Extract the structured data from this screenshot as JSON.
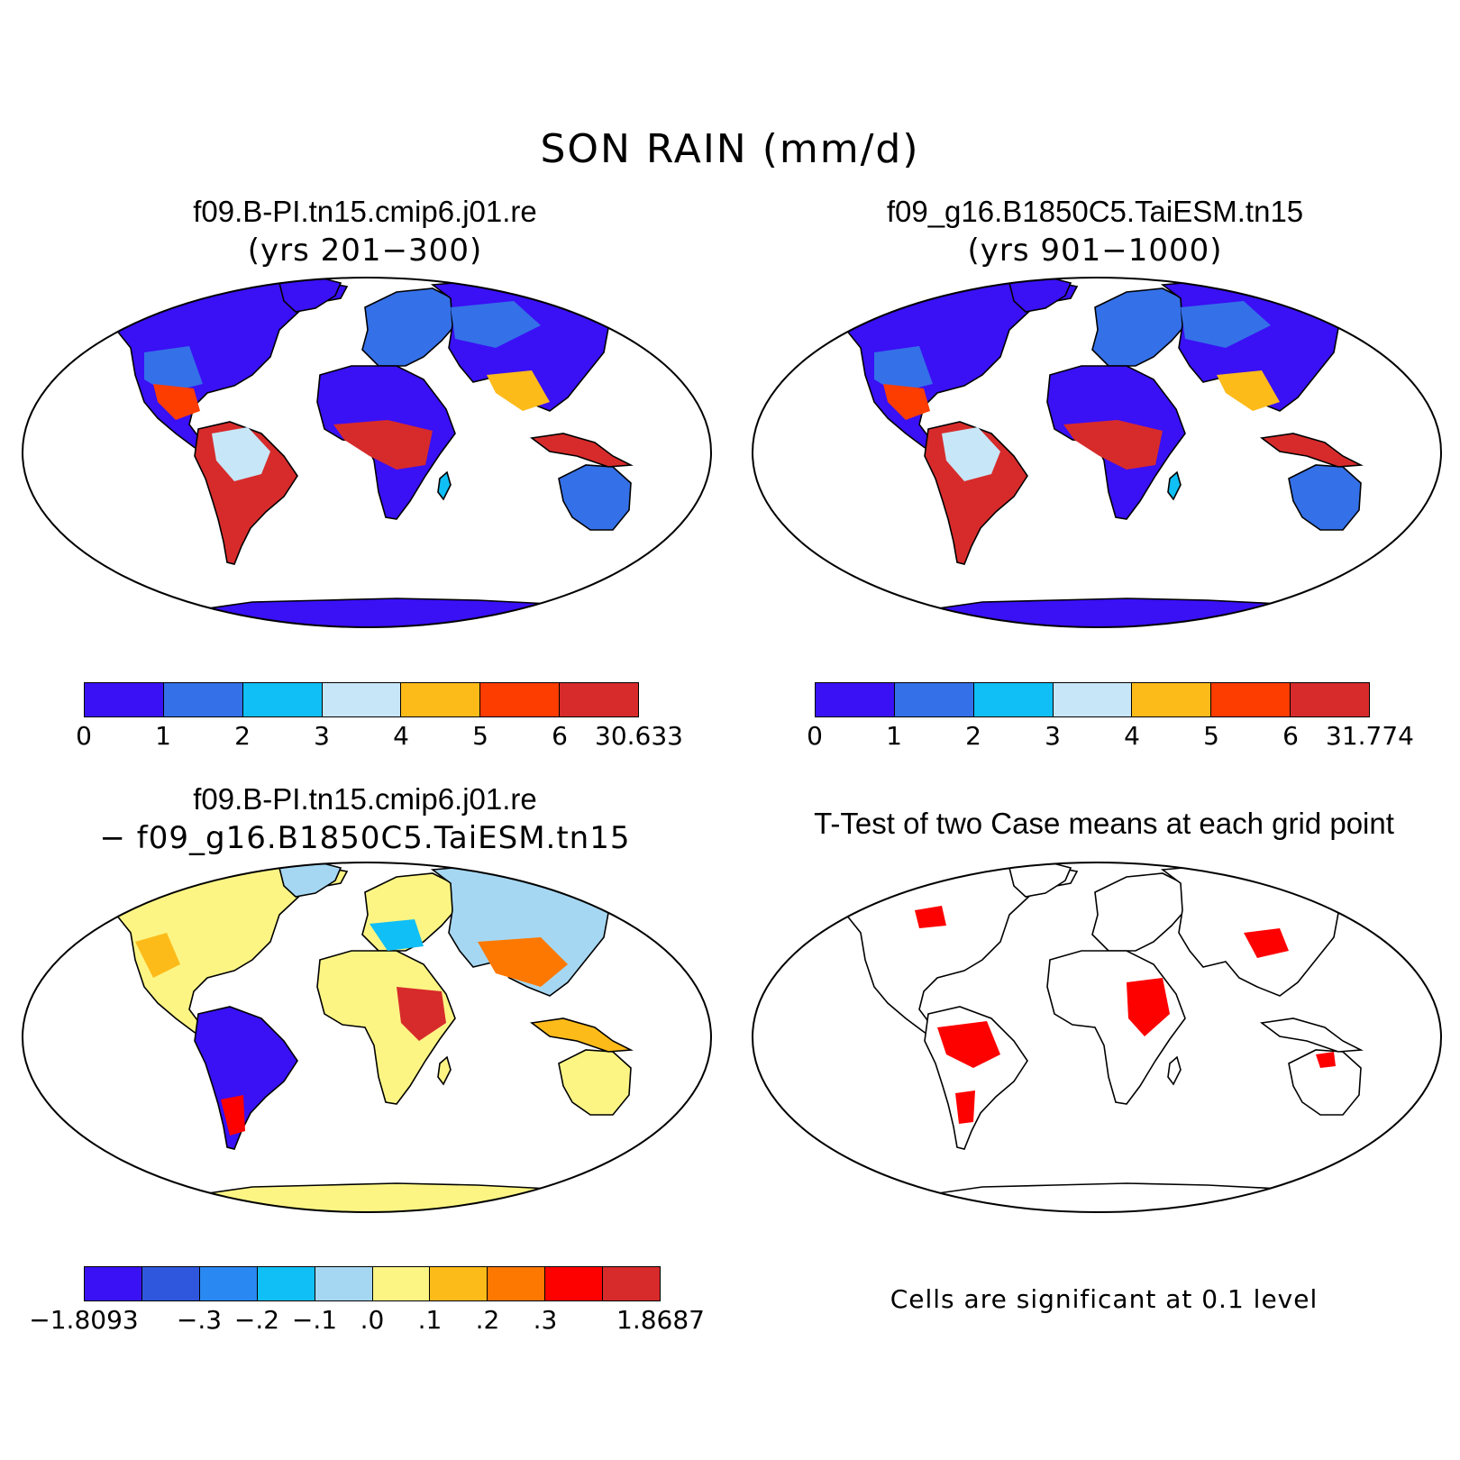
{
  "figure": {
    "title": "SON RAIN (mm/d)"
  },
  "panels": [
    {
      "id": "case1",
      "title": "f09.B-PI.tn15.cmip6.j01.re",
      "subtitle": "(yrs 201−300)",
      "colorbar": {
        "colors": [
          "#3a10f5",
          "#3470e8",
          "#10bff5",
          "#c7e6f7",
          "#fdbb1a",
          "#fd3c00",
          "#d72b2b"
        ],
        "labels": [
          "0",
          "1",
          "2",
          "3",
          "4",
          "5",
          "6",
          "30.633"
        ]
      }
    },
    {
      "id": "case2",
      "title": "f09_g16.B1850C5.TaiESM.tn15",
      "subtitle": "(yrs 901−1000)",
      "colorbar": {
        "colors": [
          "#3a10f5",
          "#3470e8",
          "#10bff5",
          "#c7e6f7",
          "#fdbb1a",
          "#fd3c00",
          "#d72b2b"
        ],
        "labels": [
          "0",
          "1",
          "2",
          "3",
          "4",
          "5",
          "6",
          "31.774"
        ]
      }
    },
    {
      "id": "diff",
      "title": "f09.B-PI.tn15.cmip6.j01.re",
      "subtitle": "− f09_g16.B1850C5.TaiESM.tn15",
      "colorbar": {
        "colors": [
          "#3a10f5",
          "#2f57de",
          "#2a88f2",
          "#10bff5",
          "#a5d7f2",
          "#fcf584",
          "#fdbb1a",
          "#fd7800",
          "#fd0000",
          "#d72b2b"
        ],
        "labels": [
          "−1.8093",
          "−.3",
          "−.2",
          "−.1",
          ".0",
          ".1",
          ".2",
          ".3",
          "1.8687"
        ],
        "label_boundary_index": [
          0,
          2,
          3,
          4,
          5,
          6,
          7,
          8,
          10
        ]
      }
    },
    {
      "id": "ttest",
      "title": "T-Test of two Case means at each grid point",
      "note": "Cells are significant at 0.1 level",
      "significant_color": "#fd0000"
    }
  ]
}
